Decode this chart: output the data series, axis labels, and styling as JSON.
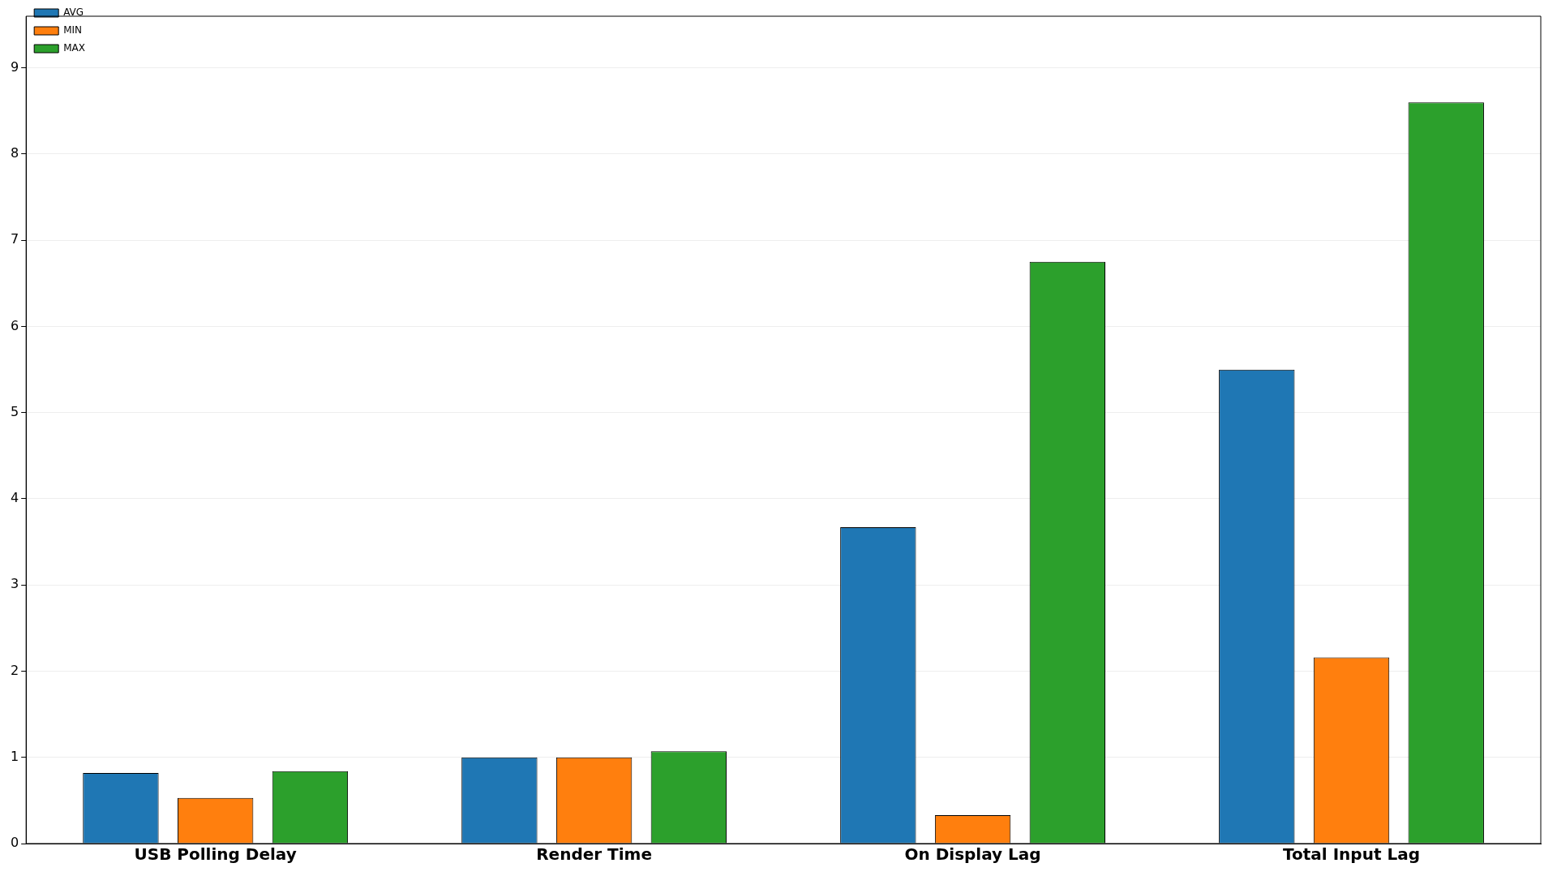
{
  "chart_data": {
    "type": "bar",
    "categories": [
      "USB Polling Delay",
      "Render Time",
      "On Display Lag",
      "Total Input Lag"
    ],
    "series": [
      {
        "name": "AVG",
        "color": "#1f77b4",
        "values": [
          0.82,
          1.0,
          3.67,
          5.5
        ]
      },
      {
        "name": "MIN",
        "color": "#ff7f0e",
        "values": [
          0.53,
          1.0,
          0.33,
          2.16
        ]
      },
      {
        "name": "MAX",
        "color": "#2ca02c",
        "values": [
          0.84,
          1.07,
          6.75,
          8.6
        ]
      }
    ],
    "ylim": [
      0,
      9.6
    ],
    "yticks": [
      0,
      1,
      2,
      3,
      4,
      5,
      6,
      7,
      8,
      9
    ],
    "grid": "y",
    "legend": "top left"
  }
}
